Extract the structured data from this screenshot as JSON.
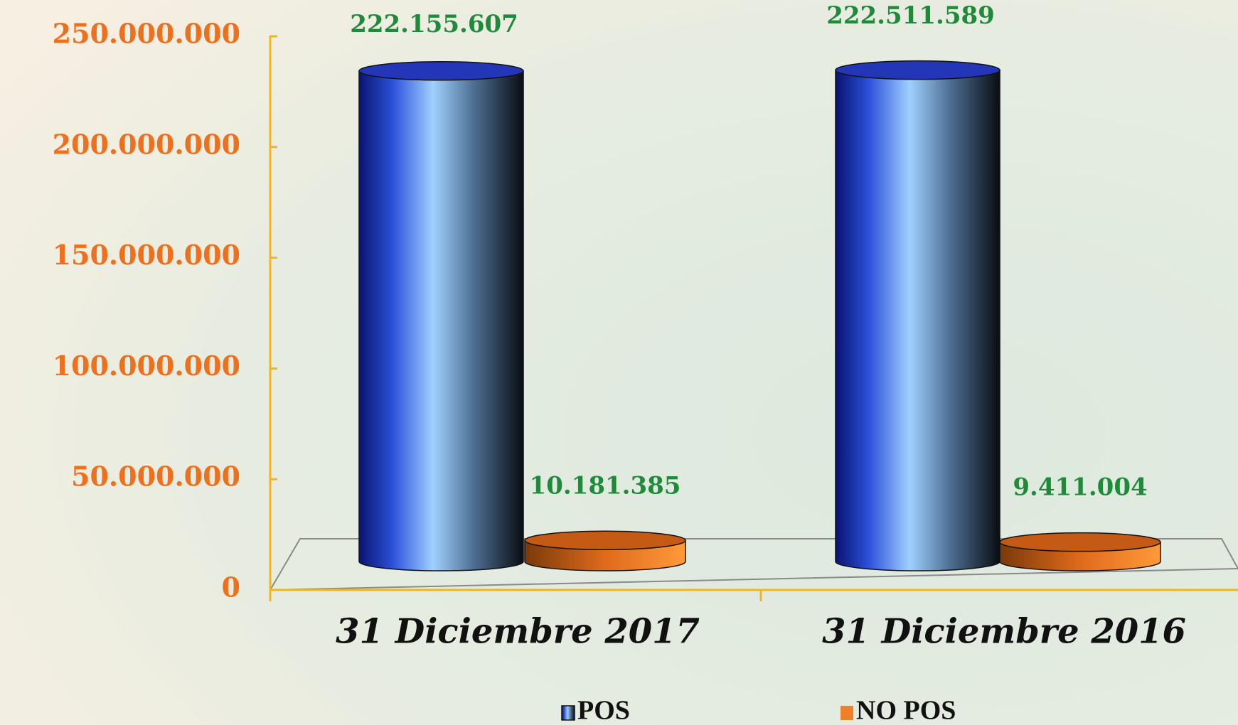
{
  "chart_data": {
    "type": "bar3d",
    "categories": [
      "31 Diciembre 2017",
      "31 Diciembre 2016"
    ],
    "series": [
      {
        "name": "POS",
        "color": "#4a70e0",
        "values": [
          222155607,
          222511589
        ],
        "value_labels": [
          "222.155.607",
          "222.511.589"
        ]
      },
      {
        "name": "NO POS",
        "color": "#f07f2a",
        "values": [
          10181385,
          9411004
        ],
        "value_labels": [
          "10.181.385",
          "9.411.004"
        ]
      }
    ],
    "ylim": [
      0,
      250000000
    ],
    "yticks": [
      0,
      {
        "value": 50000000,
        "label": "50.000.000"
      },
      {
        "value": 100000000,
        "label": "100.000.000"
      },
      {
        "value": 150000000,
        "label": "150.000.000"
      },
      {
        "value": 200000000,
        "label": "200.000.000"
      },
      {
        "value": 250000000,
        "label": "250.000.000"
      }
    ]
  }
}
